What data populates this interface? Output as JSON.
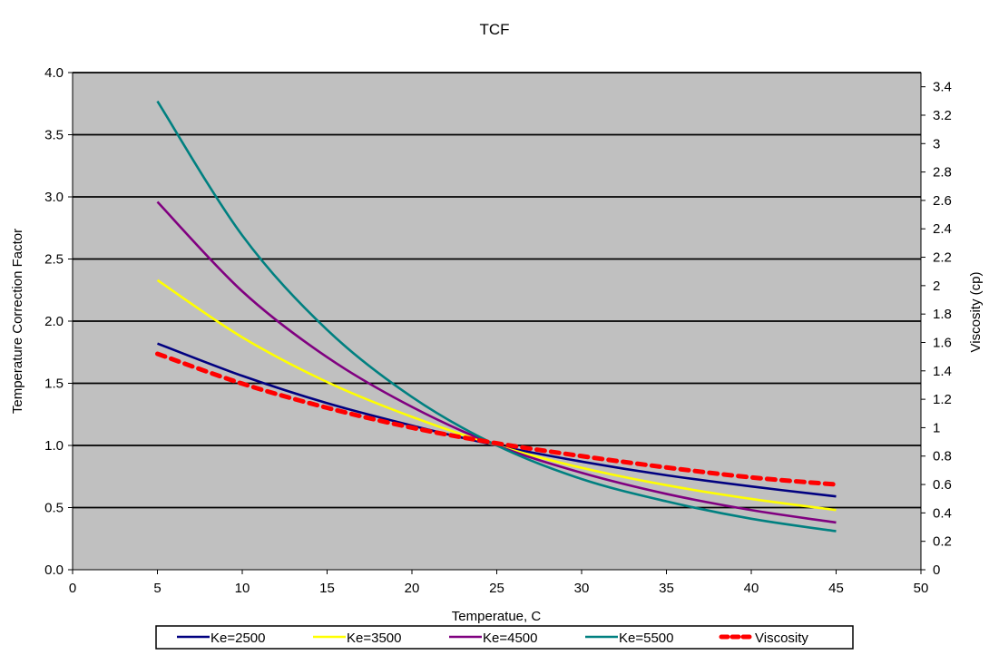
{
  "chart_data": {
    "type": "line",
    "title": "TCF",
    "xlabel": "Temperatue, C",
    "ylabel": "Temperature Correction Factor",
    "y2label": "Viscosity (cp)",
    "xlim": [
      0,
      50
    ],
    "ylim": [
      0,
      4.0
    ],
    "y2lim": [
      0,
      3.5
    ],
    "x_ticks": [
      "0",
      "5",
      "10",
      "15",
      "20",
      "25",
      "30",
      "35",
      "40",
      "45",
      "50"
    ],
    "y_ticks": [
      "0.0",
      "0.5",
      "1.0",
      "1.5",
      "2.0",
      "2.5",
      "3.0",
      "3.5",
      "4.0"
    ],
    "y2_ticks": [
      "0",
      "0.2",
      "0.4",
      "0.6",
      "0.8",
      "1",
      "1.2",
      "1.4",
      "1.6",
      "1.8",
      "2",
      "2.2",
      "2.4",
      "2.6",
      "2.8",
      "3",
      "3.2",
      "3.4"
    ],
    "grid": "horizontal",
    "plot_background": "#C0C0C0",
    "legend_position": "bottom",
    "x": [
      5,
      10,
      15,
      20,
      25,
      30,
      35,
      40,
      45
    ],
    "series": [
      {
        "name": "Ke=2500",
        "color": "#000080",
        "axis": "left",
        "dash": false,
        "values": [
          1.82,
          1.56,
          1.34,
          1.16,
          1.0,
          0.87,
          0.76,
          0.67,
          0.59
        ]
      },
      {
        "name": "Ke=3500",
        "color": "#FFFF00",
        "axis": "left",
        "dash": false,
        "values": [
          2.33,
          1.87,
          1.51,
          1.23,
          1.0,
          0.82,
          0.68,
          0.57,
          0.48
        ]
      },
      {
        "name": "Ke=4500",
        "color": "#800080",
        "axis": "left",
        "dash": false,
        "values": [
          2.96,
          2.24,
          1.71,
          1.31,
          1.0,
          0.78,
          0.61,
          0.48,
          0.38
        ]
      },
      {
        "name": "Ke=5500",
        "color": "#008080",
        "axis": "left",
        "dash": false,
        "values": [
          3.77,
          2.69,
          1.93,
          1.39,
          1.0,
          0.73,
          0.55,
          0.41,
          0.31
        ]
      },
      {
        "name": "Viscosity",
        "color": "#FF0000",
        "axis": "right",
        "dash": true,
        "values": [
          1.52,
          1.31,
          1.14,
          1.0,
          0.89,
          0.8,
          0.72,
          0.65,
          0.6
        ]
      }
    ]
  }
}
